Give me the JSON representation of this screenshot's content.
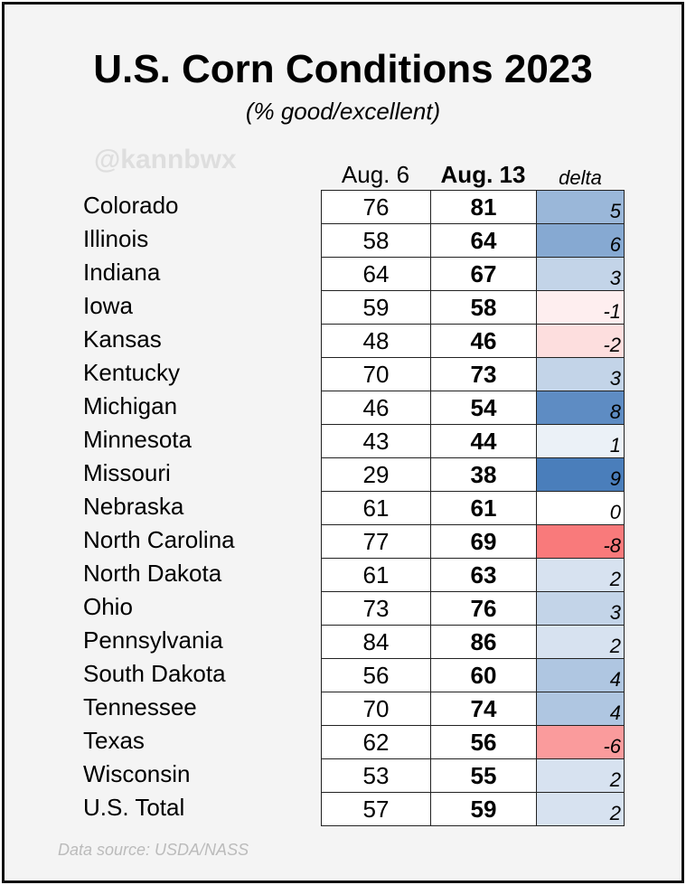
{
  "chart_data": {
    "type": "table",
    "title": "U.S. Corn Conditions 2023",
    "subtitle": "(% good/excellent)",
    "watermark": "@kannbwx",
    "source": "Data source: USDA/NASS",
    "columns": [
      "Aug. 6",
      "Aug. 13",
      "delta"
    ],
    "rows": [
      {
        "state": "Colorado",
        "aug6": 76,
        "aug13": 81,
        "delta": 5
      },
      {
        "state": "Illinois",
        "aug6": 58,
        "aug13": 64,
        "delta": 6
      },
      {
        "state": "Indiana",
        "aug6": 64,
        "aug13": 67,
        "delta": 3
      },
      {
        "state": "Iowa",
        "aug6": 59,
        "aug13": 58,
        "delta": -1
      },
      {
        "state": "Kansas",
        "aug6": 48,
        "aug13": 46,
        "delta": -2
      },
      {
        "state": "Kentucky",
        "aug6": 70,
        "aug13": 73,
        "delta": 3
      },
      {
        "state": "Michigan",
        "aug6": 46,
        "aug13": 54,
        "delta": 8
      },
      {
        "state": "Minnesota",
        "aug6": 43,
        "aug13": 44,
        "delta": 1
      },
      {
        "state": "Missouri",
        "aug6": 29,
        "aug13": 38,
        "delta": 9
      },
      {
        "state": "Nebraska",
        "aug6": 61,
        "aug13": 61,
        "delta": 0
      },
      {
        "state": "North Carolina",
        "aug6": 77,
        "aug13": 69,
        "delta": -8
      },
      {
        "state": "North Dakota",
        "aug6": 61,
        "aug13": 63,
        "delta": 2
      },
      {
        "state": "Ohio",
        "aug6": 73,
        "aug13": 76,
        "delta": 3
      },
      {
        "state": "Pennsylvania",
        "aug6": 84,
        "aug13": 86,
        "delta": 2
      },
      {
        "state": "South Dakota",
        "aug6": 56,
        "aug13": 60,
        "delta": 4
      },
      {
        "state": "Tennessee",
        "aug6": 70,
        "aug13": 74,
        "delta": 4
      },
      {
        "state": "Texas",
        "aug6": 62,
        "aug13": 56,
        "delta": -6
      },
      {
        "state": "Wisconsin",
        "aug6": 53,
        "aug13": 55,
        "delta": 2
      },
      {
        "state": "U.S. Total",
        "aug6": 57,
        "aug13": 59,
        "delta": 2
      }
    ],
    "colors": {
      "positive": "#4a7ebb",
      "negative": "#f8696b",
      "neutral": "#ffffff"
    }
  }
}
